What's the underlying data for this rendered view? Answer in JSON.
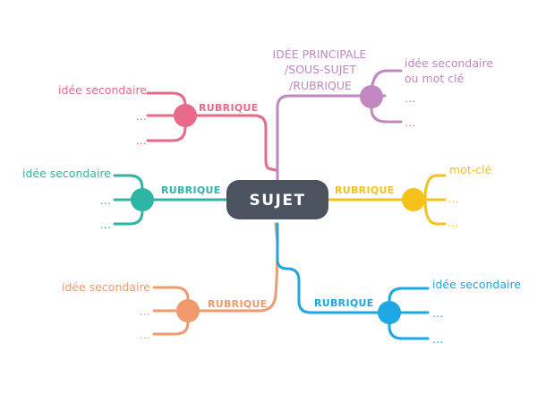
{
  "center": {
    "label": "SUJET"
  },
  "branches": {
    "top_right": {
      "color": "#c287c0",
      "title_lines": [
        "IDÉE PRINCIPALE",
        "/SOUS-SUJET",
        "/RUBRIQUE"
      ],
      "items": [
        [
          "idée secondaire",
          "ou mot clé"
        ],
        [
          "…"
        ],
        [
          "…"
        ]
      ]
    },
    "top_left": {
      "color": "#e8698a",
      "title": "RUBRIQUE",
      "items": [
        "idée secondaire",
        "…",
        "…"
      ]
    },
    "mid_left": {
      "color": "#2fb5a3",
      "title": "RUBRIQUE",
      "items": [
        "idée secondaire",
        "…",
        "…"
      ]
    },
    "mid_right": {
      "color": "#f4c21b",
      "title": "RUBRIQUE",
      "items": [
        "mot-clé",
        "…",
        "…"
      ]
    },
    "bottom_left": {
      "color": "#f09a6e",
      "title": "RUBRIQUE",
      "items": [
        "idée secondaire",
        "…",
        "…"
      ]
    },
    "bottom_right": {
      "color": "#1da8e3",
      "title": "RUBRIQUE",
      "items": [
        "idée secondaire",
        "…",
        "…"
      ]
    }
  }
}
